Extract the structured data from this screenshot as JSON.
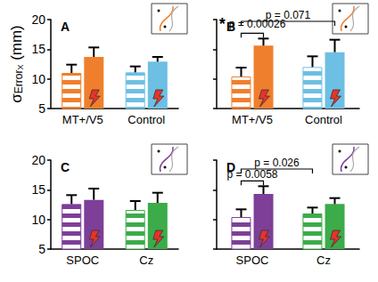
{
  "chart_data": [
    {
      "type": "bar",
      "title": "A",
      "ylabel": [
        "σ",
        "Error",
        "X",
        "(mm)"
      ],
      "categories": [
        "MT+/V5",
        "Control"
      ],
      "ylim": [
        5,
        20
      ],
      "yticks": [
        5,
        10,
        15,
        20
      ],
      "series": [
        {
          "marker": "striped",
          "colors": [
            "#f07f2d",
            "#6dbfe3"
          ],
          "values": [
            11.0,
            11.1
          ],
          "errors": [
            1.4,
            1.0
          ]
        },
        {
          "marker": "lightning",
          "colors": [
            "#f07f2d",
            "#6dbfe3"
          ],
          "values": [
            13.7,
            12.9
          ],
          "errors": [
            1.6,
            0.8
          ]
        }
      ]
    },
    {
      "type": "bar",
      "title": "B",
      "tick_labels": "x",
      "categories": [
        "MT+/V5",
        "Control"
      ],
      "ylim": [
        5,
        20
      ],
      "yticks": [
        5,
        10,
        15,
        20
      ],
      "series": [
        {
          "marker": "striped",
          "colors": [
            "#f07f2d",
            "#6dbfe3"
          ],
          "values": [
            10.4,
            12.0
          ],
          "errors": [
            1.5,
            1.8
          ]
        },
        {
          "marker": "lightning",
          "colors": [
            "#f07f2d",
            "#6dbfe3"
          ],
          "values": [
            15.6,
            14.5
          ],
          "errors": [
            1.2,
            2.1
          ]
        }
      ],
      "annotations": [
        {
          "from": 0,
          "to": 1,
          "text": "p = 0.00026",
          "sign": "*"
        },
        {
          "from": 0,
          "to": 3,
          "text": "p = 0.071"
        }
      ]
    },
    {
      "type": "bar",
      "title": "C",
      "categories": [
        "SPOC",
        "Cz"
      ],
      "ylim": [
        5,
        20
      ],
      "yticks": [
        5,
        10,
        15,
        20
      ],
      "series": [
        {
          "marker": "striped",
          "colors": [
            "#7d3f98",
            "#3cab4a"
          ],
          "values": [
            12.6,
            11.6
          ],
          "errors": [
            1.5,
            1.5
          ]
        },
        {
          "marker": "lightning",
          "colors": [
            "#7d3f98",
            "#3cab4a"
          ],
          "values": [
            13.3,
            12.8
          ],
          "errors": [
            1.9,
            1.7
          ]
        }
      ]
    },
    {
      "type": "bar",
      "title": "D",
      "tick_labels": "x",
      "categories": [
        "SPOC",
        "Cz"
      ],
      "ylim": [
        5,
        20
      ],
      "yticks": [
        5,
        10,
        15,
        20
      ],
      "series": [
        {
          "marker": "striped",
          "colors": [
            "#7d3f98",
            "#3cab4a"
          ],
          "values": [
            10.4,
            11.0
          ],
          "errors": [
            1.3,
            1.0
          ]
        },
        {
          "marker": "lightning",
          "colors": [
            "#7d3f98",
            "#3cab4a"
          ],
          "values": [
            14.3,
            12.6
          ],
          "errors": [
            1.3,
            1.0
          ]
        }
      ],
      "annotations": [
        {
          "from": 0,
          "to": 1,
          "text": "p = 0.0058"
        },
        {
          "from": 0,
          "to": 2,
          "text": "p = 0.026"
        }
      ]
    }
  ]
}
